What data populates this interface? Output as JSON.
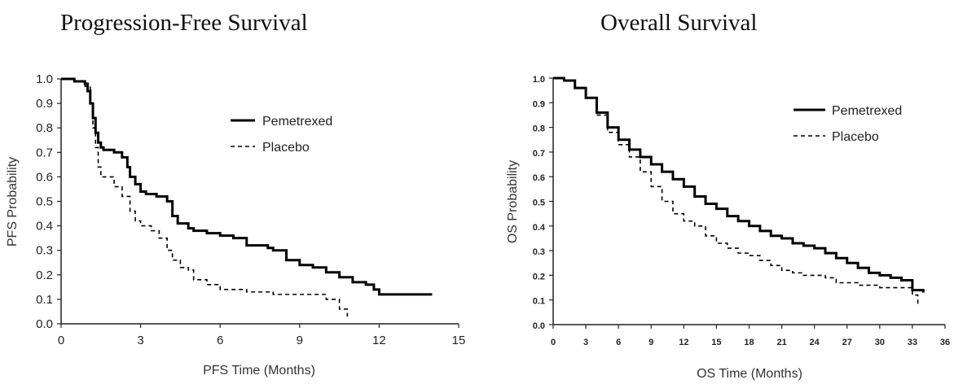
{
  "chart_data": [
    {
      "type": "line",
      "title": "Progression-Free Survival",
      "xlabel": "PFS Time (Months)",
      "ylabel": "PFS Probability",
      "xlim": [
        0,
        15
      ],
      "ylim": [
        0,
        1
      ],
      "xticks": [
        0,
        3,
        6,
        9,
        12,
        15
      ],
      "yticks": [
        0.0,
        0.1,
        0.2,
        0.3,
        0.4,
        0.5,
        0.6,
        0.7,
        0.8,
        0.9,
        1.0
      ],
      "ytick_labels": [
        "0.0",
        "0.1",
        "0.2",
        "0.3",
        "0.4",
        "0.5",
        "0.6",
        "0.7",
        "0.8",
        "0.9",
        "1.0"
      ],
      "legend_position": "top-right",
      "series": [
        {
          "name": "Pemetrexed",
          "style": "solid",
          "x": [
            0,
            0.5,
            0.9,
            1.0,
            1.1,
            1.2,
            1.3,
            1.4,
            1.5,
            1.6,
            2.0,
            2.3,
            2.5,
            2.6,
            2.8,
            3.0,
            3.2,
            3.6,
            4.0,
            4.2,
            4.4,
            4.8,
            5.0,
            5.5,
            6.0,
            6.5,
            7.0,
            7.8,
            8.0,
            8.5,
            9.0,
            9.5,
            10.0,
            10.5,
            11.0,
            11.5,
            11.8,
            12.0,
            14.0
          ],
          "y": [
            1.0,
            0.99,
            0.98,
            0.95,
            0.9,
            0.84,
            0.78,
            0.74,
            0.72,
            0.71,
            0.7,
            0.68,
            0.64,
            0.6,
            0.57,
            0.54,
            0.53,
            0.52,
            0.5,
            0.44,
            0.41,
            0.39,
            0.38,
            0.37,
            0.36,
            0.35,
            0.32,
            0.31,
            0.3,
            0.26,
            0.24,
            0.23,
            0.21,
            0.19,
            0.17,
            0.16,
            0.14,
            0.12,
            0.12
          ]
        },
        {
          "name": "Placebo",
          "style": "dashed",
          "x": [
            0,
            0.5,
            0.9,
            1.1,
            1.2,
            1.3,
            1.4,
            1.5,
            2.0,
            2.3,
            2.6,
            2.8,
            3.0,
            3.4,
            3.7,
            4.0,
            4.2,
            4.5,
            4.8,
            5.0,
            5.5,
            6.0,
            6.5,
            7.0,
            8.0,
            9.0,
            10.0,
            10.5,
            10.8
          ],
          "y": [
            1.0,
            0.99,
            0.97,
            0.9,
            0.8,
            0.72,
            0.64,
            0.6,
            0.56,
            0.52,
            0.46,
            0.42,
            0.4,
            0.38,
            0.35,
            0.3,
            0.26,
            0.23,
            0.22,
            0.18,
            0.16,
            0.14,
            0.14,
            0.13,
            0.12,
            0.12,
            0.1,
            0.06,
            0.03
          ]
        }
      ]
    },
    {
      "type": "line",
      "title": "Overall Survival",
      "xlabel": "OS Time (Months)",
      "ylabel": "OS Probability",
      "xlim": [
        0,
        36
      ],
      "ylim": [
        0,
        1
      ],
      "xticks": [
        0,
        3,
        6,
        9,
        12,
        15,
        18,
        21,
        24,
        27,
        30,
        33,
        36
      ],
      "yticks": [
        0.0,
        0.1,
        0.2,
        0.3,
        0.4,
        0.5,
        0.6,
        0.7,
        0.8,
        0.9,
        1.0
      ],
      "ytick_labels": [
        "0.0",
        "0.1",
        "0.2",
        "0.3",
        "0.4",
        "0.5",
        "0.6",
        "0.7",
        "0.8",
        "0.9",
        "1.0"
      ],
      "legend_position": "top-right",
      "series": [
        {
          "name": "Pemetrexed",
          "style": "solid",
          "x": [
            0,
            1,
            2,
            3,
            4,
            5,
            6,
            7,
            8,
            9,
            10,
            11,
            12,
            13,
            14,
            15,
            16,
            17,
            18,
            19,
            20,
            21,
            22,
            23,
            24,
            25,
            26,
            27,
            28,
            29,
            30,
            31,
            32,
            33,
            34
          ],
          "y": [
            1.0,
            0.99,
            0.96,
            0.92,
            0.86,
            0.8,
            0.75,
            0.71,
            0.68,
            0.65,
            0.62,
            0.59,
            0.56,
            0.52,
            0.49,
            0.47,
            0.44,
            0.42,
            0.4,
            0.38,
            0.36,
            0.35,
            0.33,
            0.32,
            0.31,
            0.29,
            0.27,
            0.25,
            0.23,
            0.21,
            0.2,
            0.19,
            0.18,
            0.14,
            0.13
          ]
        },
        {
          "name": "Placebo",
          "style": "dashed",
          "x": [
            0,
            1,
            2,
            3,
            4,
            5,
            6,
            7,
            8,
            9,
            10,
            11,
            12,
            13,
            14,
            15,
            16,
            17,
            18,
            19,
            20,
            21,
            22,
            23,
            24,
            25,
            26,
            27,
            28,
            29,
            30,
            31,
            32,
            33,
            33.5
          ],
          "y": [
            1.0,
            0.99,
            0.96,
            0.92,
            0.85,
            0.78,
            0.73,
            0.68,
            0.62,
            0.56,
            0.5,
            0.45,
            0.42,
            0.4,
            0.36,
            0.33,
            0.31,
            0.29,
            0.28,
            0.26,
            0.24,
            0.22,
            0.21,
            0.2,
            0.2,
            0.19,
            0.17,
            0.17,
            0.16,
            0.16,
            0.15,
            0.15,
            0.15,
            0.12,
            0.08
          ]
        }
      ]
    }
  ]
}
